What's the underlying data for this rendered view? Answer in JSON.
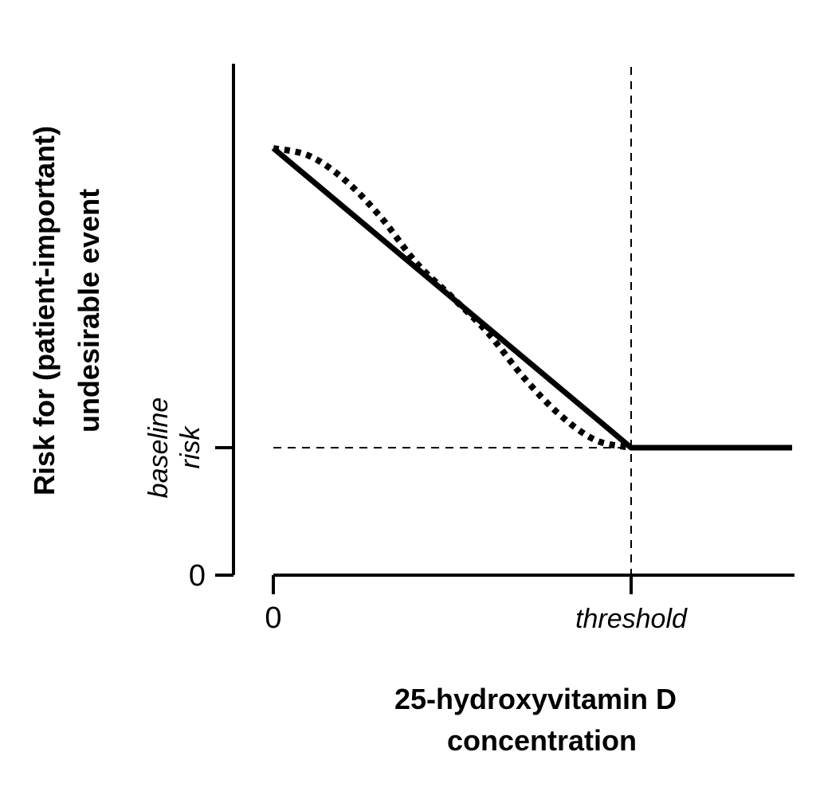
{
  "chart_data": {
    "type": "line",
    "title": "",
    "ylabel": [
      "Risk for (patient-important)",
      "undesirable event"
    ],
    "xlabel": [
      "25-hydroxyvitamin D",
      "concentration"
    ],
    "x_ticks": [
      {
        "value": 0,
        "label": "0"
      },
      {
        "value": 1,
        "label": "threshold"
      }
    ],
    "y_ticks": [
      {
        "value": 0,
        "label": "0"
      },
      {
        "value": 1,
        "label": "baseline risk"
      }
    ],
    "baseline_label": [
      "baseline",
      "risk"
    ],
    "xlim": [
      0,
      1.45
    ],
    "ylim": [
      0,
      3.35
    ],
    "series": [
      {
        "style": "solid",
        "x": [
          0,
          1,
          1.45
        ],
        "y": [
          3.35,
          1,
          1
        ]
      },
      {
        "style": "dotted",
        "x": [
          0,
          0.1,
          0.2,
          0.3,
          0.4,
          0.5,
          0.6,
          0.7,
          0.8,
          0.9,
          1.0
        ],
        "y": [
          3.35,
          3.29,
          3.1,
          2.81,
          2.45,
          2.18,
          1.9,
          1.55,
          1.26,
          1.06,
          1.0
        ]
      }
    ],
    "reference_lines": [
      {
        "orientation": "horizontal",
        "y": 1,
        "style": "dashed"
      },
      {
        "orientation": "vertical",
        "x": 1,
        "style": "dashed"
      }
    ],
    "grid": false,
    "legend": "none"
  }
}
